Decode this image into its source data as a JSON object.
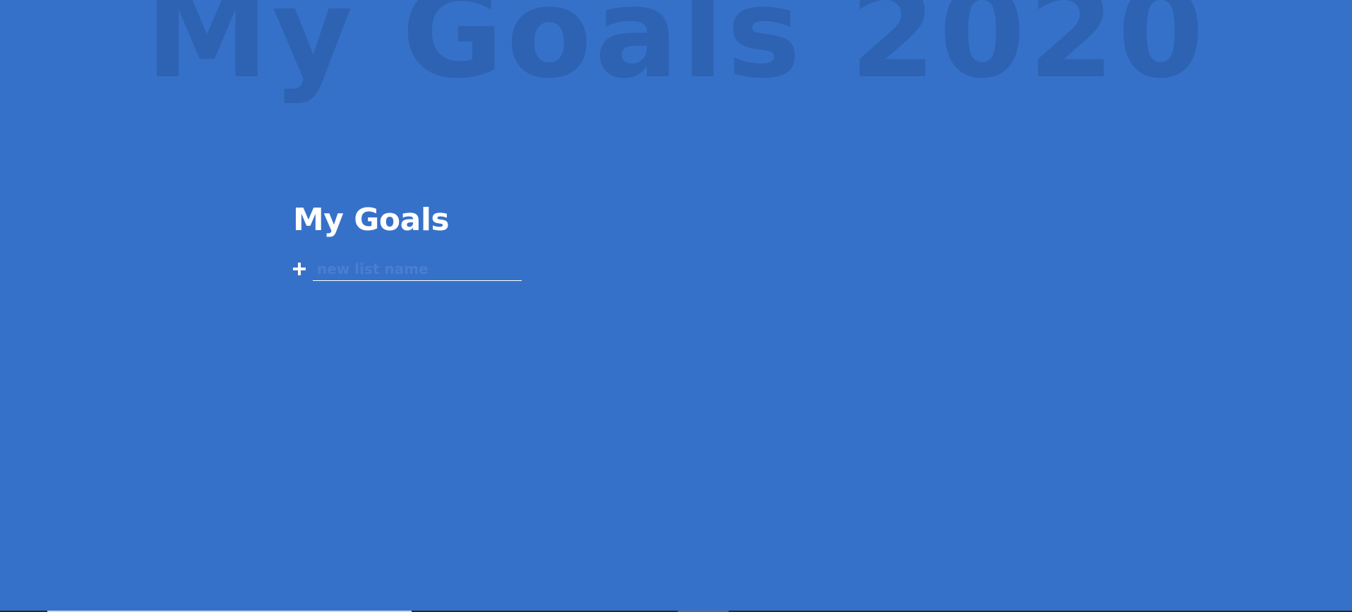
{
  "background": {
    "title": "My Goals 2020",
    "color": "#3671c9",
    "title_color": "#2e63b3"
  },
  "panel": {
    "title": "My Goals",
    "new_list": {
      "icon": "plus-icon",
      "value": "",
      "placeholder": "new list name"
    }
  }
}
